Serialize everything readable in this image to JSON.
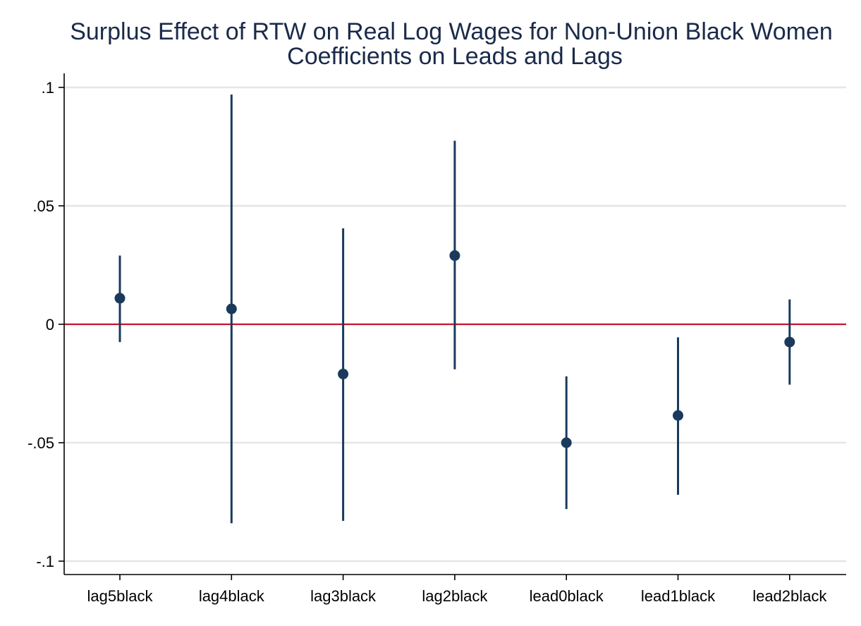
{
  "chart_data": {
    "type": "scatter",
    "title": "Surplus Effect of RTW on Real Log Wages for Non-Union Black Women",
    "subtitle": "Coefficients on Leads and Lags",
    "xlabel": "",
    "ylabel": "",
    "categories": [
      "lag5black",
      "lag4black",
      "lag3black",
      "lag2black",
      "lead0black",
      "lead1black",
      "lead2black"
    ],
    "estimates": [
      0.011,
      0.0065,
      -0.021,
      0.029,
      -0.05,
      -0.0385,
      -0.0075
    ],
    "ci_low": [
      -0.0075,
      -0.084,
      -0.083,
      -0.019,
      -0.078,
      -0.072,
      -0.0255
    ],
    "ci_high": [
      0.029,
      0.097,
      0.0405,
      0.0775,
      -0.022,
      -0.0055,
      0.0105
    ],
    "ylim": [
      -0.105,
      0.105
    ],
    "yticks": [
      0.1,
      0.05,
      0,
      -0.05,
      -0.1
    ],
    "ytick_labels": [
      ".1",
      ".05",
      "0",
      "-.05",
      "-.1"
    ],
    "reference_line": 0,
    "grid": true,
    "legend": "none",
    "colors": {
      "points": "#1a3a5c",
      "ci_lines": "#1a3a5c",
      "reference_line": "#c8102e",
      "grid": "#e6e6e6",
      "title": "#1a2a4a"
    }
  }
}
